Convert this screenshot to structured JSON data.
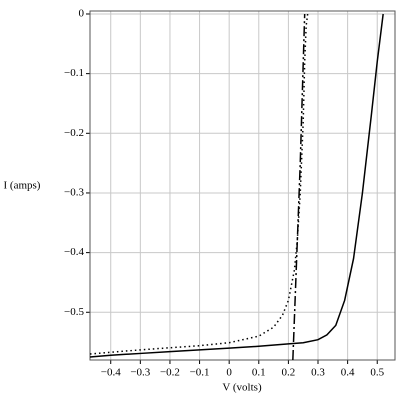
{
  "chart_data": {
    "type": "line",
    "x_label": "V (volts)",
    "y_label": "I (amps)",
    "xlim": [
      -0.47,
      0.56
    ],
    "ylim": [
      -0.58,
      0.005
    ],
    "xticks": [
      {
        "value": -0.4,
        "label": "−0.4"
      },
      {
        "value": -0.3,
        "label": "−0.3"
      },
      {
        "value": -0.2,
        "label": "−0.2"
      },
      {
        "value": -0.1,
        "label": "−0.1"
      },
      0,
      0.1,
      0.2,
      0.3,
      0.4,
      0.5
    ],
    "yticks": [
      0,
      {
        "value": -0.1,
        "label": "−0.1"
      },
      {
        "value": -0.2,
        "label": "−0.2"
      },
      {
        "value": -0.3,
        "label": "−0.3"
      },
      {
        "value": -0.4,
        "label": "−0.4"
      },
      {
        "value": -0.5,
        "label": "−0.5"
      }
    ],
    "grid": true,
    "series": [
      {
        "color": "#000000",
        "dash": "solid",
        "x": [
          -0.47,
          -0.4,
          -0.3,
          -0.2,
          -0.1,
          0,
          0.1,
          0.2,
          0.25,
          0.3,
          0.33,
          0.36,
          0.39,
          0.42,
          0.45,
          0.48,
          0.5,
          0.52
        ],
        "values": [
          -0.575,
          -0.572,
          -0.569,
          -0.566,
          -0.563,
          -0.56,
          -0.557,
          -0.553,
          -0.551,
          -0.546,
          -0.538,
          -0.522,
          -0.48,
          -0.41,
          -0.3,
          -0.17,
          -0.08,
          0
        ]
      },
      {
        "color": "#000000",
        "dash": "dotted",
        "x": [
          -0.47,
          -0.3,
          -0.1,
          0,
          0.1,
          0.15,
          0.18,
          0.2,
          0.22,
          0.23,
          0.24,
          0.25,
          0.255,
          0.26,
          0.265
        ],
        "values": [
          -0.57,
          -0.563,
          -0.556,
          -0.551,
          -0.54,
          -0.525,
          -0.505,
          -0.48,
          -0.43,
          -0.38,
          -0.3,
          -0.18,
          -0.08,
          -0.02,
          0
        ]
      },
      {
        "color": "#000000",
        "dash": "dashdot",
        "x": [
          0.215,
          0.24,
          0.255
        ],
        "values": [
          -0.58,
          -0.25,
          0
        ]
      }
    ]
  }
}
